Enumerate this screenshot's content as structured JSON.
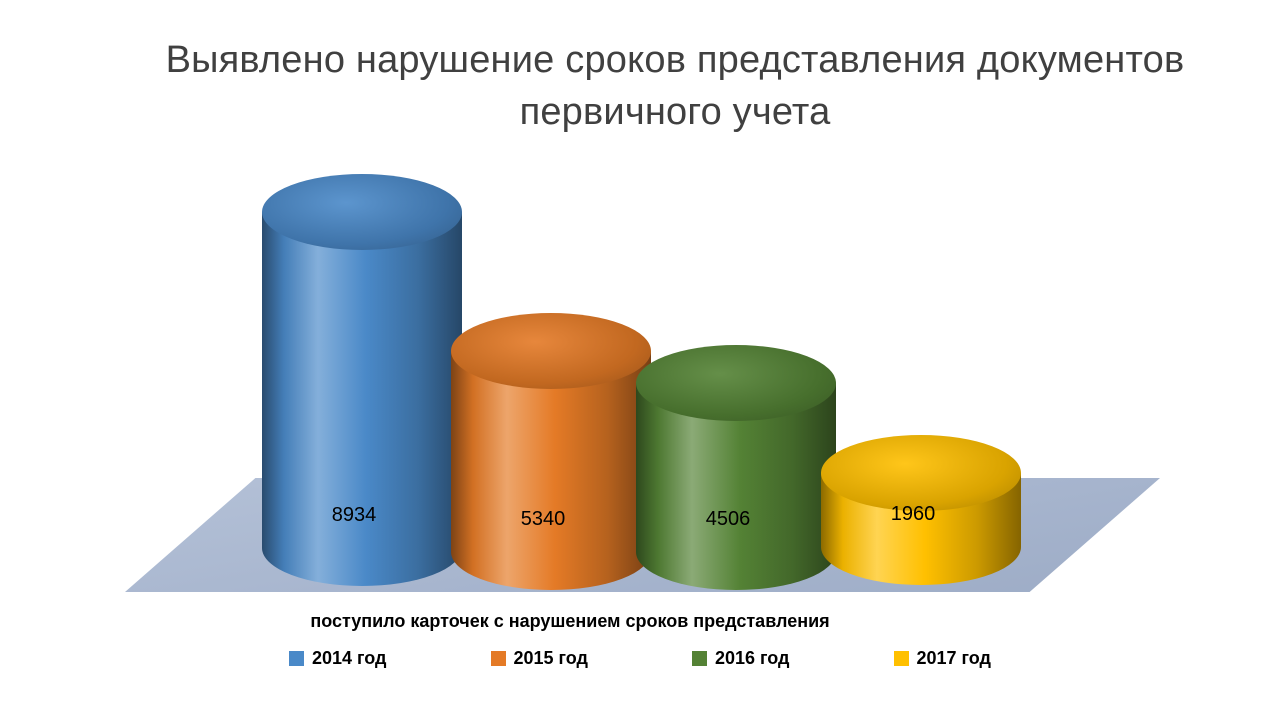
{
  "chart_data": {
    "type": "bar",
    "style": "3d-cylinder",
    "title": "Выявлено нарушение сроков представления документов первичного учета",
    "categories": [
      "2014 год",
      "2015 год",
      "2016 год",
      "2017 год"
    ],
    "values": [
      8934,
      5340,
      4506,
      1960
    ],
    "colors": [
      "#4A89C8",
      "#E47A26",
      "#548235",
      "#FFC000"
    ],
    "data_labels": [
      8934,
      5340,
      4506,
      1960
    ],
    "xlabel": "поступило карточек с нарушением сроков представления",
    "ylim": [
      0,
      8934
    ],
    "legend_position": "bottom",
    "background": "#FFFFFF",
    "floor_color": "#A7B5CE",
    "title_color": "#404040"
  }
}
